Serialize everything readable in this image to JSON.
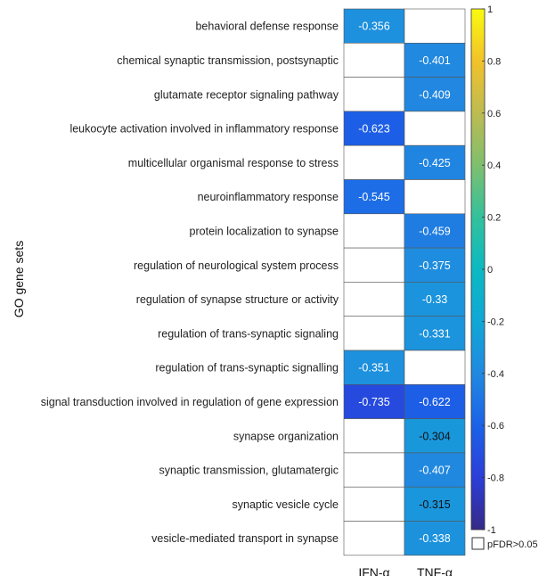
{
  "chart_data": {
    "type": "heatmap",
    "ylabel": "GO gene sets",
    "columns": [
      "IFN-α",
      "TNF-α"
    ],
    "rows": [
      "behavioral defense response",
      "chemical synaptic transmission, postsynaptic",
      "glutamate receptor signaling pathway",
      "leukocyte activation involved in inflammatory response",
      "multicellular organismal response to stress",
      "neuroinflammatory response",
      "protein localization to synapse",
      "regulation of neurological system process",
      "regulation of synapse structure or activity",
      "regulation of trans-synaptic signaling",
      "regulation of trans-synaptic signalling",
      "signal transduction involved in regulation of gene expression",
      "synapse organization",
      "synaptic transmission, glutamatergic",
      "synaptic vesicle cycle",
      "vesicle-mediated transport in synapse"
    ],
    "values": [
      [
        -0.356,
        null
      ],
      [
        null,
        -0.401
      ],
      [
        null,
        -0.409
      ],
      [
        -0.623,
        null
      ],
      [
        null,
        -0.425
      ],
      [
        -0.545,
        null
      ],
      [
        null,
        -0.459
      ],
      [
        null,
        -0.375
      ],
      [
        null,
        -0.33
      ],
      [
        null,
        -0.331
      ],
      [
        -0.351,
        null
      ],
      [
        -0.735,
        -0.622
      ],
      [
        null,
        -0.304
      ],
      [
        null,
        -0.407
      ],
      [
        null,
        -0.315
      ],
      [
        null,
        -0.338
      ]
    ],
    "colorbar": {
      "range": [
        -1,
        1
      ],
      "ticks": [
        1,
        0.8,
        0.6,
        0.4,
        0.2,
        0,
        -0.2,
        -0.4,
        -0.6,
        -0.8,
        -1
      ],
      "colormap": "parula"
    },
    "legend": {
      "label": "pFDR>0.05",
      "color": "#ffffff"
    }
  }
}
